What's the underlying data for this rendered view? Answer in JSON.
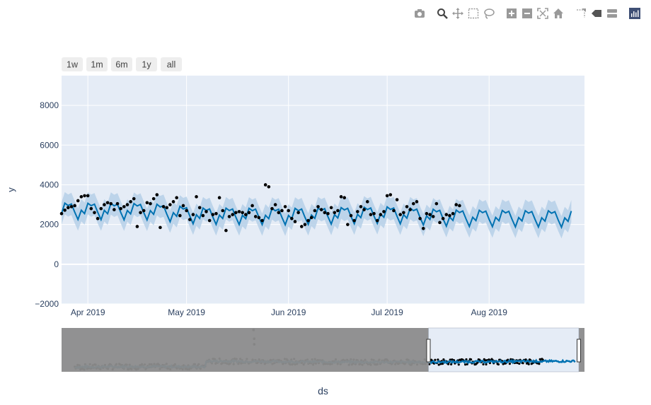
{
  "modebar": {
    "buttons": [
      {
        "name": "camera-icon",
        "active": false
      },
      {
        "name": "zoom-icon",
        "active": true
      },
      {
        "name": "pan-icon",
        "active": false
      },
      {
        "name": "box-select-icon",
        "active": false
      },
      {
        "name": "lasso-select-icon",
        "active": false
      },
      {
        "name": "zoom-in-icon",
        "active": false
      },
      {
        "name": "zoom-out-icon",
        "active": false
      },
      {
        "name": "autoscale-icon",
        "active": false
      },
      {
        "name": "reset-axes-icon",
        "active": false
      },
      {
        "name": "spike-lines-icon",
        "active": false
      },
      {
        "name": "hover-closest-icon",
        "active": false
      },
      {
        "name": "hover-compare-icon",
        "active": false
      },
      {
        "name": "plotly-logo-icon",
        "active": false
      }
    ]
  },
  "range_selector": [
    "1w",
    "1m",
    "6m",
    "1y",
    "all"
  ],
  "colors": {
    "plot_bg": "#e5ecf6",
    "grid": "#ffffff",
    "forecast_line": "#0072b2",
    "uncertainty_band": "#b6d0e8",
    "observed_points": "#000000",
    "slider_bg": "#8c8c8c",
    "slider_window": "#e5ecf6",
    "text": "#2a3f5f"
  },
  "chart_data": {
    "type": "line",
    "xlabel": "ds",
    "ylabel": "y",
    "ylim": [
      -2000,
      9500
    ],
    "xlim": [
      "2019-03-24",
      "2019-08-30"
    ],
    "yticks": [
      -2000,
      0,
      2000,
      4000,
      6000,
      8000
    ],
    "xticks": [
      "2019-04-01",
      "2019-05-01",
      "2019-06-01",
      "2019-07-01",
      "2019-08-01"
    ],
    "xtick_labels": [
      "Apr 2019",
      "May 2019",
      "Jun 2019",
      "Jul 2019",
      "Aug 2019"
    ],
    "grid": true,
    "forecast": {
      "start": "2019-03-24",
      "end": "2019-08-26",
      "weekly_pattern": [
        2380,
        2900,
        2780,
        2860,
        2450,
        2080,
        2550
      ],
      "week_start": "2019-03-24",
      "trend": [
        [
          "2019-03-24",
          2750
        ],
        [
          "2019-04-20",
          2720
        ],
        [
          "2019-05-05",
          2500
        ],
        [
          "2019-06-01",
          2480
        ],
        [
          "2019-07-01",
          2560
        ],
        [
          "2019-07-20",
          2400
        ],
        [
          "2019-08-26",
          2350
        ]
      ],
      "interval_halfwidth": 560
    },
    "observed": [
      [
        "2019-03-24",
        2550
      ],
      [
        "2019-03-25",
        2720
      ],
      [
        "2019-03-26",
        2850
      ],
      [
        "2019-03-27",
        2900
      ],
      [
        "2019-03-28",
        2950
      ],
      [
        "2019-03-29",
        3200
      ],
      [
        "2019-03-30",
        3400
      ],
      [
        "2019-03-31",
        3450
      ],
      [
        "2019-04-01",
        3450
      ],
      [
        "2019-04-02",
        2800
      ],
      [
        "2019-04-03",
        2600
      ],
      [
        "2019-04-04",
        2300
      ],
      [
        "2019-04-05",
        2800
      ],
      [
        "2019-04-06",
        3000
      ],
      [
        "2019-04-07",
        3100
      ],
      [
        "2019-04-08",
        3050
      ],
      [
        "2019-04-09",
        2750
      ],
      [
        "2019-04-10",
        3050
      ],
      [
        "2019-04-11",
        2800
      ],
      [
        "2019-04-12",
        2900
      ],
      [
        "2019-04-13",
        3000
      ],
      [
        "2019-04-14",
        3150
      ],
      [
        "2019-04-15",
        3300
      ],
      [
        "2019-04-16",
        1900
      ],
      [
        "2019-04-17",
        2600
      ],
      [
        "2019-04-18",
        2700
      ],
      [
        "2019-04-19",
        3100
      ],
      [
        "2019-04-20",
        3050
      ],
      [
        "2019-04-21",
        3300
      ],
      [
        "2019-04-22",
        3500
      ],
      [
        "2019-04-23",
        1850
      ],
      [
        "2019-04-24",
        2900
      ],
      [
        "2019-04-25",
        2850
      ],
      [
        "2019-04-26",
        3000
      ],
      [
        "2019-04-27",
        3150
      ],
      [
        "2019-04-28",
        3350
      ],
      [
        "2019-04-29",
        2450
      ],
      [
        "2019-04-30",
        2950
      ],
      [
        "2019-05-01",
        2700
      ],
      [
        "2019-05-02",
        2250
      ],
      [
        "2019-05-03",
        2500
      ],
      [
        "2019-05-04",
        3400
      ],
      [
        "2019-05-05",
        2850
      ],
      [
        "2019-05-06",
        2450
      ],
      [
        "2019-05-07",
        2650
      ],
      [
        "2019-05-08",
        2200
      ],
      [
        "2019-05-09",
        2500
      ],
      [
        "2019-05-10",
        2550
      ],
      [
        "2019-05-11",
        3350
      ],
      [
        "2019-05-12",
        2700
      ],
      [
        "2019-05-13",
        1700
      ],
      [
        "2019-05-14",
        2400
      ],
      [
        "2019-05-15",
        2500
      ],
      [
        "2019-05-16",
        2600
      ],
      [
        "2019-05-17",
        2650
      ],
      [
        "2019-05-18",
        2600
      ],
      [
        "2019-05-19",
        2500
      ],
      [
        "2019-05-20",
        2600
      ],
      [
        "2019-05-21",
        2950
      ],
      [
        "2019-05-22",
        2400
      ],
      [
        "2019-05-23",
        2350
      ],
      [
        "2019-05-24",
        2200
      ],
      [
        "2019-05-25",
        4000
      ],
      [
        "2019-05-26",
        3900
      ],
      [
        "2019-05-27",
        2800
      ],
      [
        "2019-05-28",
        3000
      ],
      [
        "2019-05-29",
        2600
      ],
      [
        "2019-05-30",
        2700
      ],
      [
        "2019-05-31",
        2900
      ],
      [
        "2019-06-01",
        2700
      ],
      [
        "2019-06-02",
        2300
      ],
      [
        "2019-06-03",
        2150
      ],
      [
        "2019-06-04",
        2600
      ],
      [
        "2019-06-05",
        1900
      ],
      [
        "2019-06-06",
        2000
      ],
      [
        "2019-06-07",
        2200
      ],
      [
        "2019-06-08",
        2350
      ],
      [
        "2019-06-09",
        2700
      ],
      [
        "2019-06-10",
        2900
      ],
      [
        "2019-06-11",
        2750
      ],
      [
        "2019-06-12",
        2600
      ],
      [
        "2019-06-13",
        2550
      ],
      [
        "2019-06-14",
        2850
      ],
      [
        "2019-06-15",
        2600
      ],
      [
        "2019-06-16",
        2700
      ],
      [
        "2019-06-17",
        3400
      ],
      [
        "2019-06-18",
        3350
      ],
      [
        "2019-06-19",
        2000
      ],
      [
        "2019-06-20",
        2450
      ],
      [
        "2019-06-21",
        2200
      ],
      [
        "2019-06-22",
        2650
      ],
      [
        "2019-06-23",
        2900
      ],
      [
        "2019-06-24",
        2750
      ],
      [
        "2019-06-25",
        3150
      ],
      [
        "2019-06-26",
        2500
      ],
      [
        "2019-06-27",
        2550
      ],
      [
        "2019-06-28",
        2200
      ],
      [
        "2019-06-29",
        2500
      ],
      [
        "2019-06-30",
        2650
      ],
      [
        "2019-07-01",
        3450
      ],
      [
        "2019-07-02",
        3500
      ],
      [
        "2019-07-03",
        2700
      ],
      [
        "2019-07-04",
        3250
      ],
      [
        "2019-07-05",
        2500
      ],
      [
        "2019-07-06",
        2600
      ],
      [
        "2019-07-07",
        2900
      ],
      [
        "2019-07-08",
        2750
      ],
      [
        "2019-07-09",
        3050
      ],
      [
        "2019-07-10",
        3150
      ],
      [
        "2019-07-11",
        2300
      ],
      [
        "2019-07-12",
        1800
      ],
      [
        "2019-07-13",
        2550
      ],
      [
        "2019-07-14",
        2500
      ],
      [
        "2019-07-15",
        2400
      ],
      [
        "2019-07-16",
        3050
      ],
      [
        "2019-07-17",
        2100
      ],
      [
        "2019-07-18",
        2300
      ],
      [
        "2019-07-19",
        2500
      ],
      [
        "2019-07-20",
        2450
      ],
      [
        "2019-07-21",
        2550
      ],
      [
        "2019-07-22",
        3000
      ],
      [
        "2019-07-23",
        2950
      ]
    ],
    "rangeslider": {
      "full_range": [
        "2018-03-01",
        "2019-09-05"
      ],
      "window": [
        "2019-03-24",
        "2019-08-30"
      ],
      "forecast_end": "2019-08-26",
      "spike": [
        "2018-09-20",
        10500
      ],
      "ylim": [
        0,
        11000
      ]
    }
  }
}
